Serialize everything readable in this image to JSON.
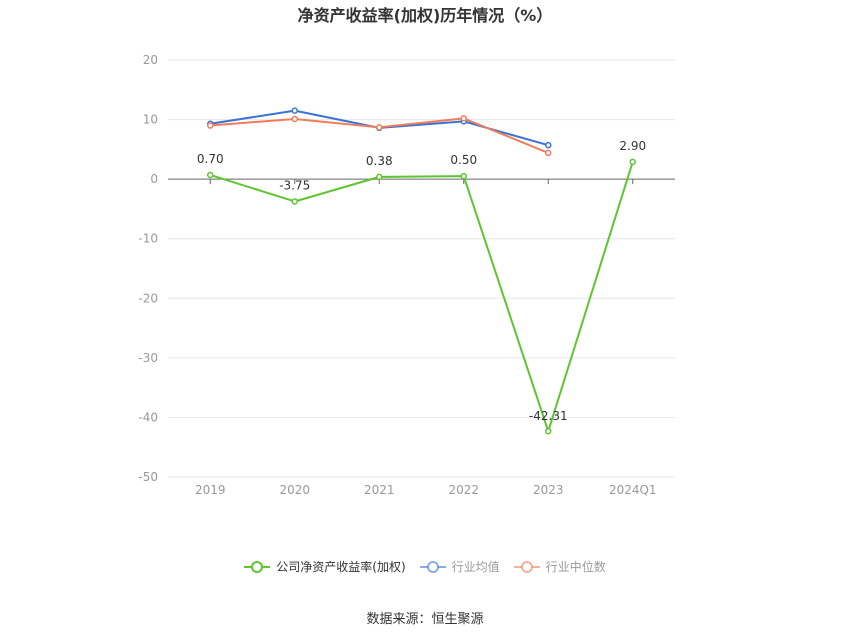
{
  "chart_data": {
    "type": "line",
    "title": "净资产收益率(加权)历年情况（%）",
    "categories": [
      "2019",
      "2020",
      "2021",
      "2022",
      "2023",
      "2024Q1"
    ],
    "ylim": [
      -50,
      20
    ],
    "yticks": [
      20,
      10,
      0,
      -10,
      -20,
      -30,
      -40,
      -50
    ],
    "grid": true,
    "legend_position": "bottom",
    "series": [
      {
        "name": "公司净资产收益率(加权)",
        "color": "#5ec530",
        "values": [
          0.7,
          -3.75,
          0.38,
          0.5,
          -42.31,
          2.9
        ],
        "labels": [
          "0.70",
          "-3.75",
          "0.38",
          "0.50",
          "-42.31",
          "2.90"
        ]
      },
      {
        "name": "行业均值",
        "color": "#3a73d8",
        "values": [
          9.3,
          11.5,
          8.6,
          9.7,
          5.7,
          null
        ]
      },
      {
        "name": "行业中位数",
        "color": "#ef7d5a",
        "values": [
          9.0,
          10.1,
          8.7,
          10.2,
          4.4,
          null
        ]
      }
    ]
  },
  "source": "数据来源：恒生聚源"
}
